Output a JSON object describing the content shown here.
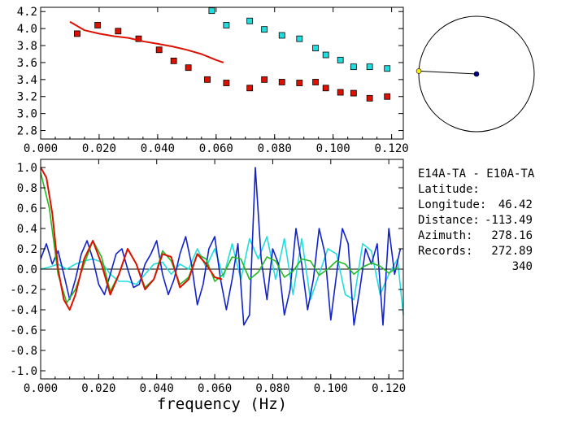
{
  "station": {
    "pair": "E14A-TA - E10A-TA",
    "rows": [
      {
        "label": "Latitude:",
        "value": "46.42"
      },
      {
        "label": "Longitude:",
        "value": "-113.49"
      },
      {
        "label": "Distance:",
        "value": "278.16"
      },
      {
        "label": "Azimuth:",
        "value": "272.89"
      },
      {
        "label": "Records:",
        "value": "340"
      }
    ]
  },
  "colors": {
    "red": "#dd1100",
    "cyan": "#22dddd",
    "blue": "#1122cc",
    "green": "#22bb22",
    "yellow": "#ffee00",
    "navy": "#000088"
  },
  "azimuth_dial": {
    "azimuth_deg": 272.89
  },
  "chart_data": [
    {
      "type": "scatter",
      "title": "",
      "xlabel": "",
      "ylabel": "",
      "xlim": [
        0.0,
        0.124
      ],
      "ylim": [
        2.7,
        4.25
      ],
      "x_ticks": [
        "0.000",
        "0.020",
        "0.040",
        "0.060",
        "0.080",
        "0.100",
        "0.120"
      ],
      "x_tick_values": [
        0.0,
        0.02,
        0.04,
        0.06,
        0.08,
        0.1,
        0.12
      ],
      "y_ticks": [
        "2.8",
        "3.0",
        "3.2",
        "3.4",
        "3.6",
        "3.8",
        "4.0",
        "4.2"
      ],
      "y_tick_values": [
        2.8,
        3.0,
        3.2,
        3.4,
        3.6,
        3.8,
        4.0,
        4.2
      ],
      "series": [
        {
          "color": "red",
          "kind": "squares",
          "x": [
            0.0125,
            0.0195,
            0.0265,
            0.0335,
            0.0405,
            0.0455,
            0.0505,
            0.057,
            0.0635,
            0.0715,
            0.0765,
            0.0825,
            0.0885,
            0.094,
            0.0975,
            0.1025,
            0.107,
            0.1125,
            0.1185
          ],
          "y": [
            3.94,
            4.04,
            3.97,
            3.88,
            3.75,
            3.62,
            3.54,
            3.4,
            3.36,
            3.3,
            3.4,
            3.37,
            3.36,
            3.37,
            3.3,
            3.25,
            3.24,
            3.18,
            3.2
          ]
        },
        {
          "color": "cyan",
          "kind": "squares",
          "x": [
            0.0585,
            0.0635,
            0.0715,
            0.0765,
            0.0825,
            0.0885,
            0.094,
            0.0975,
            0.1025,
            0.107,
            0.1125,
            0.1185
          ],
          "y": [
            4.21,
            4.04,
            4.09,
            3.99,
            3.92,
            3.88,
            3.77,
            3.69,
            3.63,
            3.55,
            3.55,
            3.53
          ]
        },
        {
          "color": "red",
          "kind": "line",
          "x": [
            0.01,
            0.015,
            0.02,
            0.025,
            0.03,
            0.035,
            0.04,
            0.045,
            0.05,
            0.055,
            0.06,
            0.0625
          ],
          "y": [
            4.08,
            3.98,
            3.94,
            3.91,
            3.89,
            3.85,
            3.82,
            3.79,
            3.75,
            3.7,
            3.63,
            3.6
          ]
        }
      ]
    },
    {
      "type": "line",
      "title": "",
      "xlabel": "frequency (Hz)",
      "ylabel": "",
      "xlim": [
        0.0,
        0.125
      ],
      "ylim": [
        -1.08,
        1.08
      ],
      "x_ticks": [
        "0.000",
        "0.020",
        "0.040",
        "0.060",
        "0.080",
        "0.100",
        "0.120"
      ],
      "x_tick_values": [
        0.0,
        0.02,
        0.04,
        0.06,
        0.08,
        0.1,
        0.12
      ],
      "y_ticks": [
        "1.0",
        "0.8",
        "0.6",
        "0.4",
        "0.2",
        "0.0",
        "-0.2",
        "-0.4",
        "-0.6",
        "-0.8",
        "-1.0"
      ],
      "y_tick_values": [
        1.0,
        0.8,
        0.6,
        0.4,
        0.2,
        0.0,
        -0.2,
        -0.4,
        -0.6,
        -0.8,
        -1.0
      ],
      "series": [
        {
          "color": "cyan",
          "x": [
            0.0,
            0.003,
            0.006,
            0.009,
            0.012,
            0.015,
            0.018,
            0.021,
            0.024,
            0.027,
            0.03,
            0.033,
            0.036,
            0.039,
            0.042,
            0.045,
            0.048,
            0.051,
            0.054,
            0.057,
            0.06,
            0.063,
            0.066,
            0.069,
            0.072,
            0.075,
            0.078,
            0.081,
            0.084,
            0.087,
            0.09,
            0.093,
            0.096,
            0.099,
            0.102,
            0.105,
            0.108,
            0.111,
            0.114,
            0.117,
            0.12,
            0.123,
            0.125
          ],
          "y": [
            0.0,
            0.02,
            0.05,
            0.0,
            0.05,
            0.08,
            0.1,
            0.07,
            -0.05,
            -0.12,
            -0.12,
            -0.15,
            -0.05,
            0.05,
            0.07,
            -0.05,
            0.05,
            0.0,
            0.2,
            0.02,
            0.2,
            -0.08,
            0.25,
            -0.1,
            0.3,
            0.1,
            0.32,
            -0.1,
            0.3,
            -0.25,
            0.3,
            -0.3,
            -0.05,
            0.2,
            0.15,
            -0.25,
            -0.3,
            0.25,
            0.18,
            -0.25,
            -0.05,
            0.1,
            -0.45
          ]
        },
        {
          "color": "blue",
          "x": [
            0.0,
            0.002,
            0.004,
            0.006,
            0.008,
            0.01,
            0.012,
            0.014,
            0.016,
            0.018,
            0.02,
            0.022,
            0.024,
            0.026,
            0.028,
            0.03,
            0.032,
            0.034,
            0.036,
            0.038,
            0.04,
            0.042,
            0.044,
            0.046,
            0.048,
            0.05,
            0.052,
            0.054,
            0.056,
            0.058,
            0.06,
            0.062,
            0.064,
            0.066,
            0.068,
            0.07,
            0.072,
            0.074,
            0.076,
            0.078,
            0.08,
            0.082,
            0.084,
            0.086,
            0.088,
            0.09,
            0.092,
            0.094,
            0.096,
            0.098,
            0.1,
            0.102,
            0.104,
            0.106,
            0.108,
            0.11,
            0.112,
            0.114,
            0.116,
            0.118,
            0.12,
            0.122,
            0.124
          ],
          "y": [
            0.1,
            0.25,
            0.05,
            0.18,
            -0.05,
            -0.3,
            -0.1,
            0.15,
            0.28,
            0.1,
            -0.15,
            -0.25,
            -0.05,
            0.15,
            0.2,
            0.0,
            -0.18,
            -0.15,
            0.05,
            0.15,
            0.28,
            -0.05,
            -0.25,
            -0.1,
            0.15,
            0.32,
            0.05,
            -0.35,
            -0.15,
            0.2,
            0.32,
            -0.1,
            -0.4,
            -0.1,
            0.25,
            -0.55,
            -0.45,
            1.0,
            0.1,
            -0.3,
            0.2,
            0.05,
            -0.45,
            -0.2,
            0.4,
            0.05,
            -0.4,
            -0.1,
            0.4,
            0.15,
            -0.5,
            -0.05,
            0.4,
            0.25,
            -0.55,
            -0.2,
            0.2,
            0.05,
            0.25,
            -0.55,
            0.4,
            -0.05,
            0.2
          ]
        },
        {
          "color": "green",
          "x": [
            0.0,
            0.003,
            0.006,
            0.009,
            0.012,
            0.015,
            0.018,
            0.021,
            0.024,
            0.027,
            0.03,
            0.033,
            0.036,
            0.039,
            0.042,
            0.045,
            0.048,
            0.051,
            0.054,
            0.057,
            0.06,
            0.063,
            0.066,
            0.069,
            0.072,
            0.075,
            0.078,
            0.081,
            0.084,
            0.087,
            0.09,
            0.093,
            0.096,
            0.099,
            0.102,
            0.105,
            0.108,
            0.111,
            0.114,
            0.117,
            0.12,
            0.123
          ],
          "y": [
            0.95,
            0.6,
            -0.05,
            -0.33,
            -0.2,
            0.05,
            0.28,
            0.12,
            -0.22,
            -0.05,
            0.2,
            0.05,
            -0.18,
            -0.1,
            0.18,
            0.08,
            -0.15,
            -0.08,
            0.15,
            0.1,
            -0.12,
            -0.05,
            0.12,
            0.1,
            -0.1,
            -0.03,
            0.12,
            0.08,
            -0.08,
            -0.02,
            0.1,
            0.08,
            -0.06,
            0.0,
            0.08,
            0.05,
            -0.05,
            0.02,
            0.06,
            0.03,
            -0.04,
            0.02
          ]
        },
        {
          "color": "red",
          "x": [
            0.0,
            0.002,
            0.004,
            0.006,
            0.008,
            0.01,
            0.012,
            0.015,
            0.018,
            0.021,
            0.024,
            0.027,
            0.03,
            0.033,
            0.036,
            0.039,
            0.042,
            0.045,
            0.048,
            0.051,
            0.054,
            0.057,
            0.06,
            0.0625
          ],
          "y": [
            1.0,
            0.9,
            0.55,
            0.0,
            -0.3,
            -0.4,
            -0.25,
            0.1,
            0.28,
            0.05,
            -0.25,
            -0.05,
            0.2,
            0.05,
            -0.2,
            -0.1,
            0.15,
            0.12,
            -0.18,
            -0.1,
            0.15,
            0.05,
            -0.08,
            -0.1
          ]
        }
      ]
    }
  ]
}
